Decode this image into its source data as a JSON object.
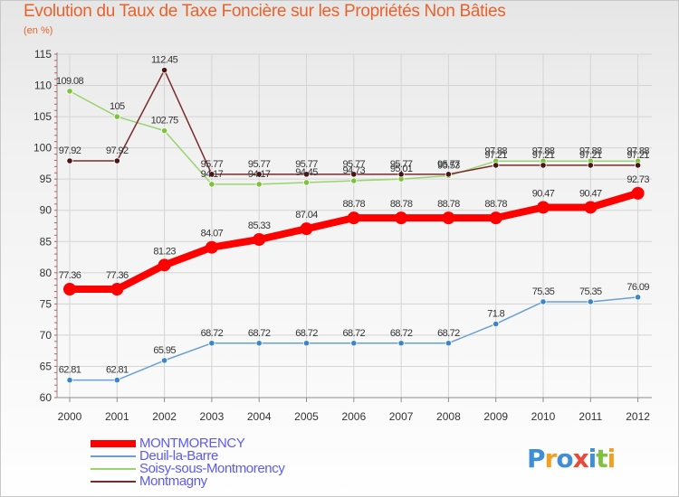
{
  "header": {
    "title": "Evolution du Taux de Taxe Foncière sur les Propriétés Non Bâties",
    "unit": "(en %)"
  },
  "logo": {
    "letters": [
      "P",
      "r",
      "o",
      "x",
      "i",
      "t",
      "i"
    ],
    "colors": [
      "#3f8fd6",
      "#f2a024",
      "#3f8fd6",
      "#e84a3c",
      "#3f8fd6",
      "#7fc242",
      "#f2a024"
    ]
  },
  "chart_data": {
    "type": "line",
    "title": "Evolution du Taux de Taxe Foncière sur les Propriétés Non Bâties",
    "ylabel": "(en %)",
    "xlabel": "",
    "categories": [
      "2000",
      "2001",
      "2002",
      "2003",
      "2004",
      "2005",
      "2006",
      "2007",
      "2008",
      "2009",
      "2010",
      "2011",
      "2012"
    ],
    "ylim": [
      60,
      115
    ],
    "yticks": [
      60,
      65,
      70,
      75,
      80,
      85,
      90,
      95,
      100,
      105,
      110,
      115
    ],
    "grid": true,
    "series": [
      {
        "name": "Deuil-la-Barre",
        "color": "#6a9fd4",
        "marker": "#3a86c8",
        "emphasis": false,
        "values": [
          62.81,
          62.81,
          65.95,
          68.72,
          68.72,
          68.72,
          68.72,
          68.72,
          68.72,
          71.8,
          75.35,
          75.35,
          76.09
        ],
        "labels": [
          "62.81",
          "62.81",
          "65.95",
          "68.72",
          "68.72",
          "68.72",
          "68.72",
          "68.72",
          "68.72",
          "71.8",
          "75.35",
          "75.35",
          "76.09"
        ]
      },
      {
        "name": "Soisy-sous-Montmorency",
        "color": "#99d46e",
        "marker": "#7cc33a",
        "emphasis": false,
        "values": [
          109.08,
          105,
          102.75,
          94.17,
          94.17,
          94.45,
          94.73,
          95.01,
          95.53,
          97.88,
          97.88,
          97.88,
          97.88
        ],
        "labels": [
          "109.08",
          "105",
          "102.75",
          "94.17",
          "94.17",
          "94.45",
          "94.73",
          "95.01",
          "95.53",
          "97.88",
          "97.88",
          "97.88",
          "97.88"
        ]
      },
      {
        "name": "Montmagny",
        "color": "#7a2b2b",
        "marker": "#4a1414",
        "emphasis": false,
        "values": [
          97.92,
          97.92,
          112.45,
          95.77,
          95.77,
          95.77,
          95.77,
          95.77,
          95.77,
          97.21,
          97.21,
          97.21,
          97.21
        ],
        "labels": [
          "97.92",
          "97.92",
          "112.45",
          "95.77",
          "95.77",
          "95.77",
          "95.77",
          "95.77",
          "95.77",
          "97.21",
          "97.21",
          "97.21",
          "97.21"
        ]
      },
      {
        "name": "MONTMORENCY",
        "color": "#ff0000",
        "marker": "#ff0000",
        "emphasis": true,
        "values": [
          77.36,
          77.36,
          81.23,
          84.07,
          85.33,
          87.04,
          88.78,
          88.78,
          88.78,
          88.78,
          90.47,
          90.47,
          92.73
        ],
        "labels": [
          "77.36",
          "77.36",
          "81.23",
          "84.07",
          "85.33",
          "87.04",
          "88.78",
          "88.78",
          "88.78",
          "88.78",
          "90.47",
          "90.47",
          "92.73"
        ]
      }
    ],
    "legend": [
      {
        "name": "MONTMORENCY",
        "color": "#ff0000",
        "thick": true
      },
      {
        "name": "Deuil-la-Barre",
        "color": "#6a9fd4",
        "thick": false
      },
      {
        "name": "Soisy-sous-Montmorency",
        "color": "#99d46e",
        "thick": false
      },
      {
        "name": "Montmagny",
        "color": "#7a2b2b",
        "thick": false
      }
    ]
  }
}
